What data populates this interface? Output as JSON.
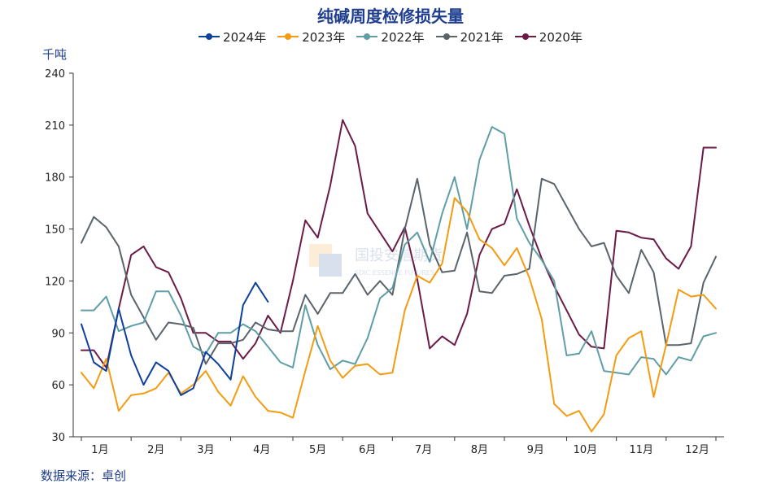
{
  "chart_data": {
    "type": "line",
    "title": "纯碱周度检修损失量",
    "ylabel": "千吨",
    "ylim": [
      30,
      240
    ],
    "yticks": [
      30,
      60,
      90,
      120,
      150,
      180,
      210,
      240
    ],
    "xlim": [
      1,
      52
    ],
    "month_labels": [
      "1月",
      "2月",
      "3月",
      "4月",
      "5月",
      "6月",
      "7月",
      "8月",
      "9月",
      "10月",
      "11月",
      "12月"
    ],
    "month_positions": [
      2.5,
      7,
      11,
      15.5,
      20,
      24,
      28.5,
      33,
      37.5,
      41.5,
      46,
      50.5
    ],
    "legend_position": "top-center",
    "grid": false,
    "series": [
      {
        "name": "2024年",
        "color": "#0d3f9c",
        "x": [
          1,
          2,
          3,
          4,
          5,
          6,
          7,
          8,
          9,
          10,
          11,
          12,
          13,
          14,
          15,
          16
        ],
        "values": [
          95,
          73,
          68,
          104,
          77,
          60,
          73,
          68,
          54,
          58,
          79,
          72,
          63,
          106,
          119,
          108
        ]
      },
      {
        "name": "2023年",
        "color": "#f39c12",
        "x": [
          1,
          2,
          3,
          4,
          5,
          6,
          7,
          8,
          9,
          10,
          11,
          12,
          13,
          14,
          15,
          16,
          17,
          18,
          19,
          20,
          21,
          22,
          23,
          24,
          25,
          26,
          27,
          28,
          29,
          30,
          31,
          32,
          33,
          34,
          35,
          36,
          37,
          38,
          39,
          40,
          41,
          42,
          43,
          44,
          45,
          46,
          47,
          48,
          49,
          50,
          51,
          52
        ],
        "values": [
          67,
          58,
          75,
          45,
          54,
          55,
          58,
          67,
          55,
          60,
          68,
          56,
          48,
          65,
          53,
          45,
          44,
          41,
          68,
          94,
          74,
          64,
          71,
          72,
          66,
          67,
          103,
          123,
          119,
          130,
          168,
          160,
          144,
          139,
          129,
          139,
          122,
          98,
          49,
          42,
          45,
          33,
          43,
          77,
          87,
          91,
          53,
          83,
          115,
          111,
          112,
          104
        ]
      },
      {
        "name": "2022年",
        "color": "#5f9ea6",
        "x": [
          1,
          2,
          3,
          4,
          5,
          6,
          7,
          8,
          9,
          10,
          11,
          12,
          13,
          14,
          15,
          16,
          17,
          18,
          19,
          20,
          21,
          22,
          23,
          24,
          25,
          26,
          27,
          28,
          29,
          30,
          31,
          32,
          33,
          34,
          35,
          36,
          37,
          38,
          39,
          40,
          41,
          42,
          43,
          44,
          45,
          46,
          47,
          48,
          49,
          50,
          51,
          52
        ],
        "values": [
          103,
          103,
          111,
          91,
          94,
          96,
          114,
          114,
          100,
          82,
          78,
          90,
          90,
          95,
          91,
          82,
          73,
          70,
          106,
          83,
          69,
          74,
          72,
          87,
          110,
          116,
          141,
          148,
          131,
          159,
          180,
          150,
          190,
          209,
          205,
          156,
          142,
          132,
          120,
          77,
          78,
          91,
          68,
          67,
          66,
          76,
          75,
          66,
          76,
          74,
          88,
          90
        ]
      },
      {
        "name": "2021年",
        "color": "#5b636b",
        "x": [
          1,
          2,
          3,
          4,
          5,
          6,
          7,
          8,
          9,
          10,
          11,
          12,
          13,
          14,
          15,
          16,
          17,
          18,
          19,
          20,
          21,
          22,
          23,
          24,
          25,
          26,
          27,
          28,
          29,
          30,
          31,
          32,
          33,
          34,
          35,
          36,
          37,
          38,
          39,
          40,
          41,
          42,
          43,
          44,
          45,
          46,
          47,
          48,
          49,
          50,
          51,
          52
        ],
        "values": [
          142,
          157,
          151,
          140,
          112,
          99,
          86,
          96,
          95,
          93,
          72,
          84,
          84,
          86,
          96,
          92,
          91,
          91,
          112,
          101,
          113,
          113,
          124,
          112,
          120,
          112,
          150,
          179,
          141,
          125,
          126,
          148,
          114,
          113,
          123,
          124,
          127,
          179,
          176,
          163,
          150,
          140,
          142,
          123,
          113,
          138,
          125,
          83,
          83,
          84,
          119,
          134
        ]
      },
      {
        "name": "2020年",
        "color": "#6b1b46",
        "x": [
          1,
          2,
          3,
          4,
          5,
          6,
          7,
          8,
          9,
          10,
          11,
          12,
          13,
          14,
          15,
          16,
          17,
          18,
          19,
          20,
          21,
          22,
          23,
          24,
          25,
          26,
          27,
          28,
          29,
          30,
          31,
          32,
          33,
          34,
          35,
          36,
          37,
          38,
          39,
          40,
          41,
          42,
          43,
          44,
          45,
          46,
          47,
          48,
          49,
          50,
          51,
          52
        ],
        "values": [
          80,
          80,
          70,
          104,
          135,
          140,
          128,
          125,
          110,
          90,
          90,
          85,
          85,
          75,
          84,
          100,
          90,
          120,
          155,
          145,
          175,
          213,
          198,
          159,
          148,
          137,
          151,
          121,
          81,
          88,
          83,
          101,
          135,
          150,
          153,
          173,
          152,
          133,
          117,
          103,
          89,
          82,
          81,
          149,
          148,
          145,
          144,
          133,
          127,
          140,
          197,
          197
        ]
      }
    ]
  },
  "watermark": {
    "brand": "国投安信期货",
    "sub": "SDIC ESSENCE FUTURES"
  },
  "source_label": "数据来源：卓创"
}
